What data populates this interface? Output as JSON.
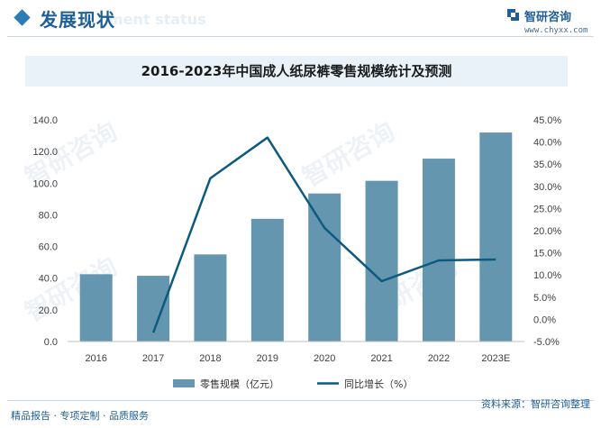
{
  "header": {
    "title": "发展现状",
    "watermark": "ment status",
    "logo_name": "智研咨询",
    "logo_url": "www.chyxx.com"
  },
  "watermarks": [
    "智研咨询",
    "智研咨询",
    "智研咨询",
    "智研咨询"
  ],
  "footer": {
    "left": "精品报告 · 专项定制 · 品质服务",
    "right": "资料来源：智研咨询整理"
  },
  "colors": {
    "bar": "#6596b0",
    "line": "#0d5a80",
    "brand": "#1f5f96"
  },
  "chart_data": {
    "type": "bar",
    "title": "2016-2023年中国成人纸尿裤零售规模统计及预测",
    "categories": [
      "2016",
      "2017",
      "2018",
      "2019",
      "2020",
      "2021",
      "2022",
      "2023E"
    ],
    "series": [
      {
        "name": "零售规模（亿元）",
        "type": "bar",
        "axis": "left",
        "values": [
          42.5,
          41.5,
          55.0,
          77.5,
          93.5,
          101.5,
          115.5,
          132.0
        ]
      },
      {
        "name": "同比增长（%）",
        "type": "line",
        "axis": "right",
        "values": [
          null,
          -3.0,
          31.8,
          41.0,
          20.6,
          8.6,
          13.3,
          13.5
        ]
      }
    ],
    "y_left": {
      "min": 0,
      "max": 140,
      "ticks": [
        "0.0",
        "20.0",
        "40.0",
        "60.0",
        "80.0",
        "100.0",
        "120.0",
        "140.0"
      ]
    },
    "y_right": {
      "min": -5,
      "max": 45,
      "ticks": [
        "-5.0%",
        "0.0%",
        "5.0%",
        "10.0%",
        "15.0%",
        "20.0%",
        "25.0%",
        "30.0%",
        "35.0%",
        "40.0%",
        "45.0%"
      ]
    },
    "grid": false,
    "legend": "bottom"
  }
}
